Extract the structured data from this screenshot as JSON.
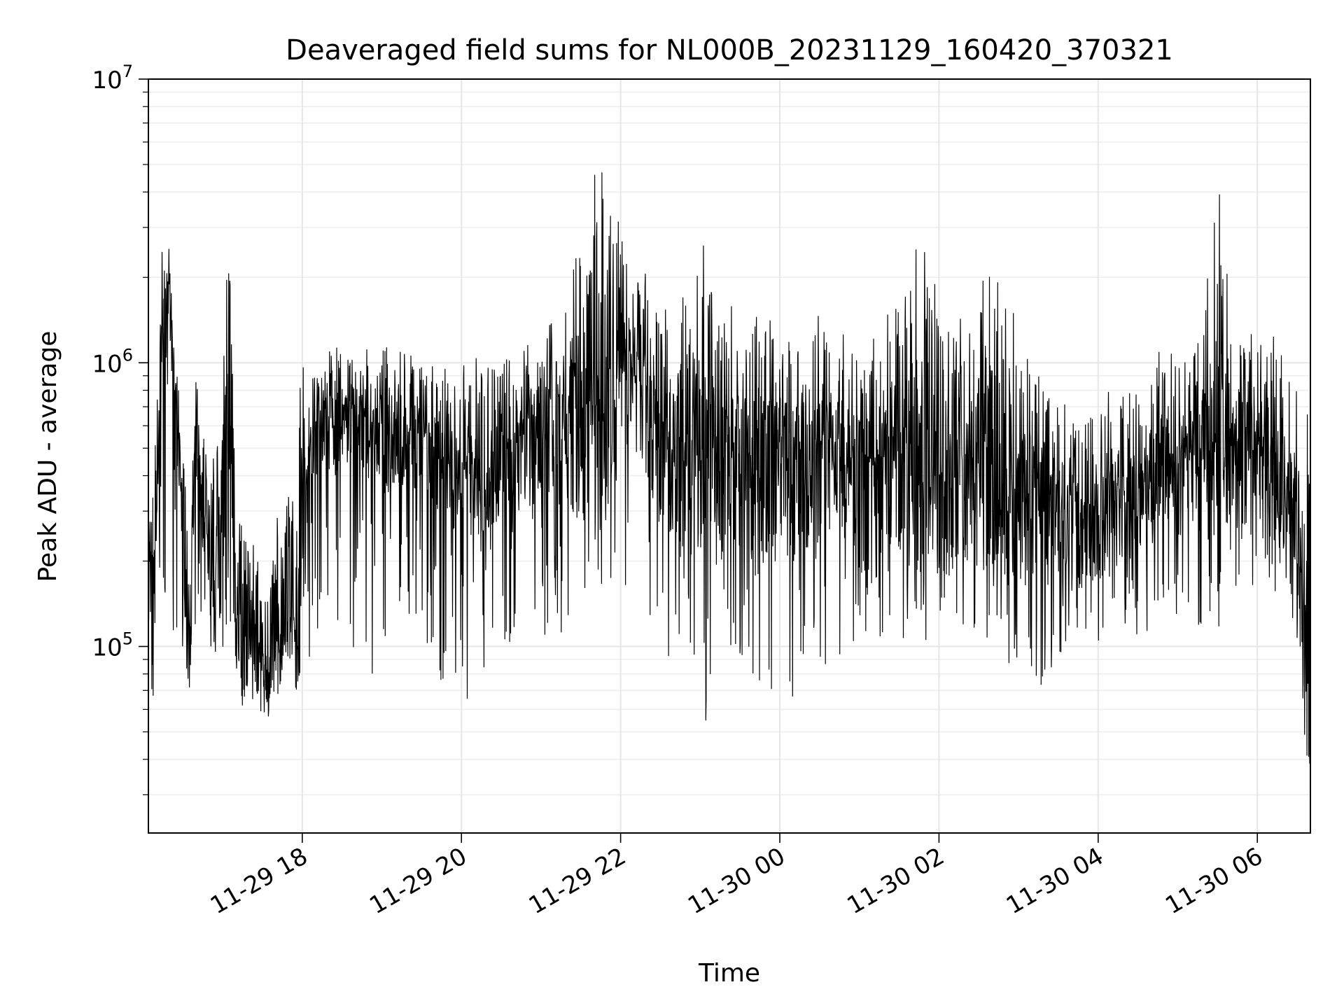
{
  "chart_data": {
    "type": "line",
    "title": "Deaveraged field sums for NL000B_20231129_160420_370321",
    "xlabel": "Time",
    "ylabel": "Peak ADU - average",
    "yscale": "log",
    "ylim": [
      22000,
      10000000
    ],
    "xlim": [
      "2023-11-29 16:04",
      "2023-11-30 06:40"
    ],
    "grid": true,
    "line_color": "#000000",
    "x_ticks": [
      {
        "value": "2023-11-29 18:00",
        "label": "11-29 18"
      },
      {
        "value": "2023-11-29 20:00",
        "label": "11-29 20"
      },
      {
        "value": "2023-11-29 22:00",
        "label": "11-29 22"
      },
      {
        "value": "2023-11-30 00:00",
        "label": "11-30 00"
      },
      {
        "value": "2023-11-30 02:00",
        "label": "11-30 02"
      },
      {
        "value": "2023-11-30 04:00",
        "label": "11-30 04"
      },
      {
        "value": "2023-11-30 06:00",
        "label": "11-30 06"
      }
    ],
    "y_ticks": [
      {
        "value": 100000,
        "base": "10",
        "exp": "5"
      },
      {
        "value": 1000000,
        "base": "10",
        "exp": "6"
      },
      {
        "value": 10000000,
        "base": "10",
        "exp": "7"
      }
    ],
    "series": [
      {
        "x": [
          "2023-11-29 16:04",
          "2023-11-29 16:10",
          "2023-11-29 16:15",
          "2023-11-29 16:20",
          "2023-11-29 16:25",
          "2023-11-29 16:30",
          "2023-11-29 16:35",
          "2023-11-29 16:40",
          "2023-11-29 16:45",
          "2023-11-29 16:50",
          "2023-11-29 16:55",
          "2023-11-29 17:00",
          "2023-11-29 17:05",
          "2023-11-29 17:10",
          "2023-11-29 17:15",
          "2023-11-29 17:20",
          "2023-11-29 17:25",
          "2023-11-29 17:30",
          "2023-11-29 17:35",
          "2023-11-29 17:40",
          "2023-11-29 17:45",
          "2023-11-29 17:50",
          "2023-11-29 17:55",
          "2023-11-29 18:00",
          "2023-11-29 18:05",
          "2023-11-29 18:15",
          "2023-11-29 18:30",
          "2023-11-29 18:45",
          "2023-11-29 19:00",
          "2023-11-29 19:15",
          "2023-11-29 19:30",
          "2023-11-29 19:45",
          "2023-11-29 20:00",
          "2023-11-29 20:15",
          "2023-11-29 20:30",
          "2023-11-29 20:45",
          "2023-11-29 21:00",
          "2023-11-29 21:15",
          "2023-11-29 21:30",
          "2023-11-29 21:45",
          "2023-11-29 22:00",
          "2023-11-29 22:15",
          "2023-11-29 22:30",
          "2023-11-29 22:45",
          "2023-11-29 23:00",
          "2023-11-29 23:15",
          "2023-11-29 23:30",
          "2023-11-29 23:45",
          "2023-11-30 00:00",
          "2023-11-30 00:15",
          "2023-11-30 00:30",
          "2023-11-30 00:45",
          "2023-11-30 01:00",
          "2023-11-30 01:15",
          "2023-11-30 01:30",
          "2023-11-30 01:45",
          "2023-11-30 02:00",
          "2023-11-30 02:15",
          "2023-11-30 02:30",
          "2023-11-30 02:45",
          "2023-11-30 03:00",
          "2023-11-30 03:15",
          "2023-11-30 03:30",
          "2023-11-30 03:45",
          "2023-11-30 04:00",
          "2023-11-30 04:15",
          "2023-11-30 04:30",
          "2023-11-30 04:45",
          "2023-11-30 05:00",
          "2023-11-30 05:15",
          "2023-11-30 05:30",
          "2023-11-30 05:45",
          "2023-11-30 06:00",
          "2023-11-30 06:10",
          "2023-11-30 06:20",
          "2023-11-30 06:30",
          "2023-11-30 06:40"
        ],
        "y": [
          150000,
          300000,
          1500000,
          1500000,
          700000,
          250000,
          100000,
          500000,
          300000,
          200000,
          150000,
          300000,
          800000,
          150000,
          100000,
          110000,
          100000,
          90000,
          80000,
          100000,
          130000,
          150000,
          110000,
          200000,
          500000,
          550000,
          600000,
          550000,
          500000,
          500000,
          500000,
          420000,
          380000,
          380000,
          420000,
          480000,
          500000,
          520000,
          600000,
          750000,
          900000,
          750000,
          500000,
          450000,
          500000,
          430000,
          400000,
          350000,
          360000,
          400000,
          400000,
          420000,
          400000,
          420000,
          420000,
          380000,
          380000,
          350000,
          420000,
          400000,
          320000,
          280000,
          260000,
          250000,
          280000,
          300000,
          330000,
          380000,
          400000,
          420000,
          450000,
          450000,
          420000,
          400000,
          350000,
          200000,
          70000
        ],
        "y_high": [
          350000,
          700000,
          4000000,
          2800000,
          1100000,
          600000,
          250000,
          900000,
          600000,
          450000,
          500000,
          1700000,
          3400000,
          600000,
          300000,
          250000,
          250000,
          180000,
          180000,
          300000,
          380000,
          450000,
          300000,
          1600000,
          1100000,
          1100000,
          1150000,
          1150000,
          1150000,
          1100000,
          1100000,
          1000000,
          1000000,
          1100000,
          1200000,
          1300000,
          1500000,
          2000000,
          3700000,
          5500000,
          3400000,
          2200000,
          1800000,
          2500000,
          3000000,
          1800000,
          1500000,
          2000000,
          2000000,
          1500000,
          1600000,
          1500000,
          1300000,
          1200000,
          2000000,
          2800000,
          2000000,
          1500000,
          2600000,
          2800000,
          1400000,
          1100000,
          800000,
          700000,
          800000,
          900000,
          1000000,
          1100000,
          1200000,
          1400000,
          4800000,
          1500000,
          1400000,
          1300000,
          1200000,
          1000000,
          600000
        ],
        "y_low": [
          40000,
          60000,
          90000,
          100000,
          120000,
          80000,
          70000,
          110000,
          90000,
          80000,
          70000,
          70000,
          70000,
          60000,
          55000,
          60000,
          60000,
          55000,
          55000,
          60000,
          65000,
          70000,
          60000,
          65000,
          70000,
          75000,
          80000,
          80000,
          80000,
          80000,
          80000,
          70000,
          60000,
          70000,
          80000,
          90000,
          90000,
          100000,
          110000,
          130000,
          140000,
          120000,
          90000,
          70000,
          30000,
          90000,
          80000,
          60000,
          55000,
          70000,
          70000,
          80000,
          90000,
          90000,
          90000,
          100000,
          100000,
          95000,
          100000,
          90000,
          70000,
          60000,
          80000,
          90000,
          90000,
          95000,
          100000,
          110000,
          110000,
          100000,
          80000,
          110000,
          130000,
          150000,
          150000,
          100000,
          35000
        ]
      }
    ]
  }
}
